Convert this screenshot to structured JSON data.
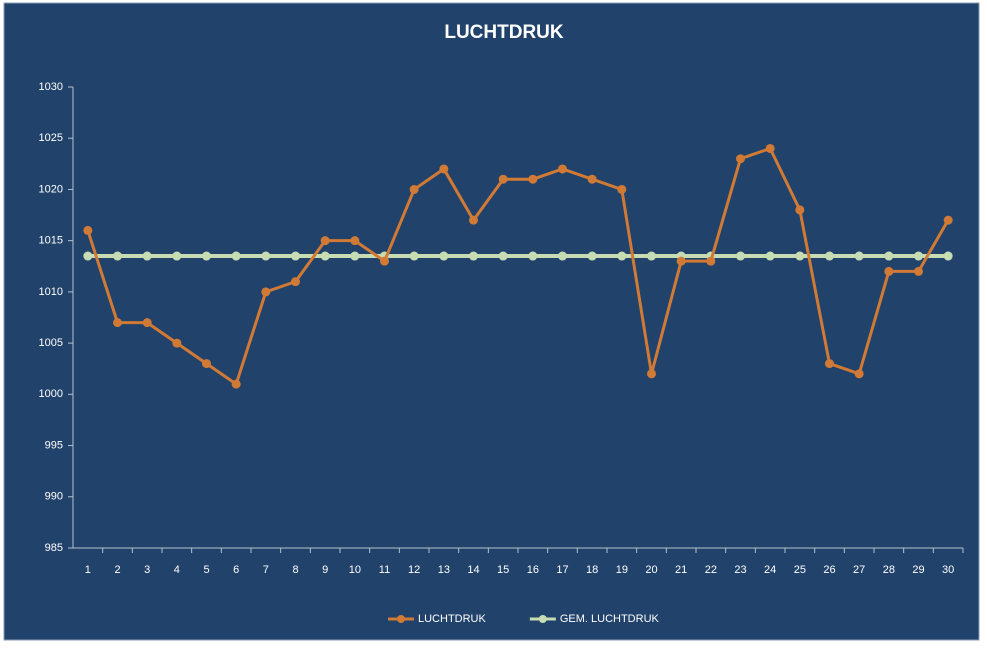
{
  "chart_data": {
    "type": "line",
    "title": "LUCHTDRUK",
    "categories": [
      "1",
      "2",
      "3",
      "4",
      "5",
      "6",
      "7",
      "8",
      "9",
      "10",
      "11",
      "12",
      "13",
      "14",
      "15",
      "16",
      "17",
      "18",
      "19",
      "20",
      "21",
      "22",
      "23",
      "24",
      "25",
      "26",
      "27",
      "28",
      "29",
      "30"
    ],
    "series": [
      {
        "name": "LUCHTDRUK",
        "color": "#d07a35",
        "values": [
          1016,
          1007,
          1007,
          1005,
          1003,
          1001,
          1010,
          1011,
          1015,
          1015,
          1013,
          1020,
          1022,
          1017,
          1021,
          1021,
          1022,
          1021,
          1020,
          1002,
          1013,
          1013,
          1023,
          1024,
          1018,
          1003,
          1002,
          1012,
          1012,
          1017
        ]
      },
      {
        "name": "GEM. LUCHTDRUK",
        "color": "#c8dcb4",
        "values": [
          1013.5,
          1013.5,
          1013.5,
          1013.5,
          1013.5,
          1013.5,
          1013.5,
          1013.5,
          1013.5,
          1013.5,
          1013.5,
          1013.5,
          1013.5,
          1013.5,
          1013.5,
          1013.5,
          1013.5,
          1013.5,
          1013.5,
          1013.5,
          1013.5,
          1013.5,
          1013.5,
          1013.5,
          1013.5,
          1013.5,
          1013.5,
          1013.5,
          1013.5,
          1013.5
        ]
      }
    ],
    "ylim": [
      985,
      1030
    ],
    "yticks": [
      985,
      990,
      995,
      1000,
      1005,
      1010,
      1015,
      1020,
      1025,
      1030
    ],
    "legend": "bottom"
  }
}
